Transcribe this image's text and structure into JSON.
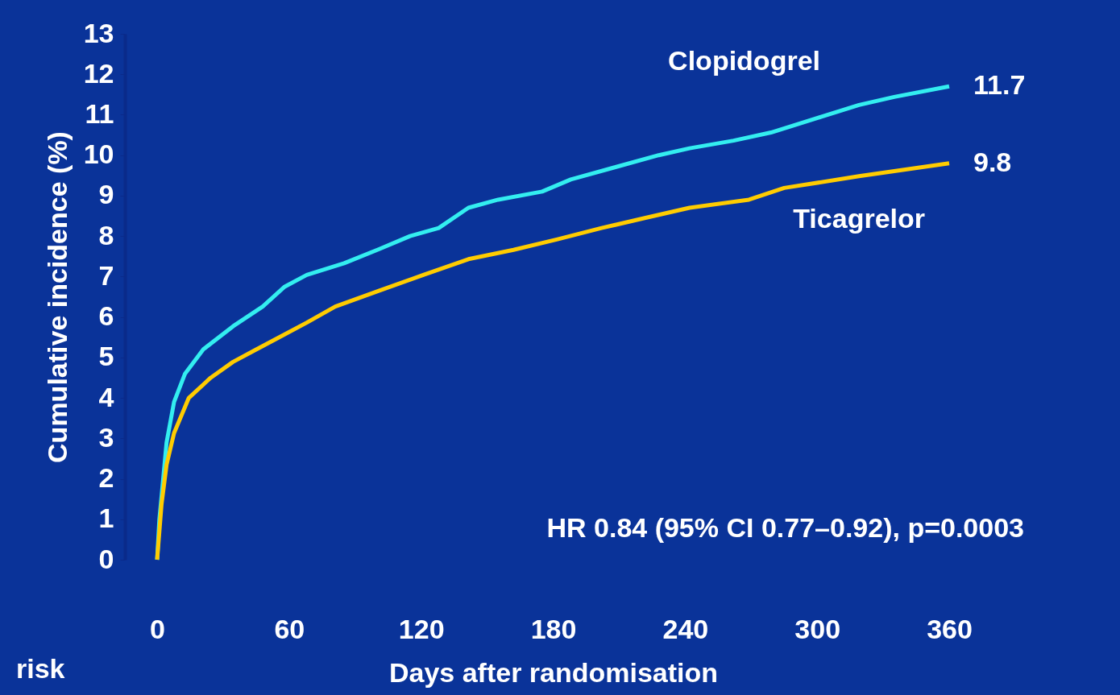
{
  "chart_data": {
    "type": "line",
    "xlabel": "Days after randomisation",
    "ylabel": "Cumulative incidence (%)",
    "xlim": [
      0,
      360
    ],
    "xticks": [
      0,
      60,
      120,
      180,
      240,
      300,
      360
    ],
    "ylim": [
      0,
      13
    ],
    "yticks": [
      0,
      1,
      2,
      3,
      4,
      5,
      6,
      7,
      8,
      9,
      10,
      11,
      12,
      13
    ],
    "grid": false,
    "legend": false,
    "marker": "none",
    "line_style": "solid",
    "series": [
      {
        "name": "Clopidogrel",
        "color": "#33eef0",
        "x": [
          0,
          1,
          2.7,
          4.3,
          7.7,
          12.7,
          21,
          34.5,
          48,
          58,
          68,
          85,
          101,
          115,
          128,
          141.5,
          155,
          175,
          188,
          208,
          228,
          242,
          262,
          279,
          302,
          319,
          335,
          360
        ],
        "values": [
          0,
          0.98,
          1.96,
          2.9,
          3.9,
          4.6,
          5.2,
          5.77,
          6.26,
          6.75,
          7.04,
          7.33,
          7.68,
          8.0,
          8.2,
          8.7,
          8.9,
          9.1,
          9.4,
          9.7,
          10.0,
          10.17,
          10.36,
          10.56,
          10.95,
          11.24,
          11.44,
          11.7
        ],
        "value_labels": [
          null,
          null,
          null,
          null,
          null,
          null,
          null,
          null,
          null,
          null,
          null,
          null,
          null,
          null,
          null,
          null,
          null,
          null,
          null,
          null,
          null,
          null,
          null,
          null,
          null,
          null,
          null,
          "11.7"
        ]
      },
      {
        "name": "Ticagrelor",
        "color": "#ffcc00",
        "x": [
          0,
          2,
          4.3,
          7.7,
          14.4,
          24.4,
          34.5,
          44.5,
          54.5,
          68,
          81,
          101,
          121,
          141.5,
          162,
          182,
          202,
          222,
          242,
          269,
          285,
          319,
          360
        ],
        "values": [
          0,
          1.37,
          2.35,
          3.13,
          4.0,
          4.5,
          4.89,
          5.18,
          5.47,
          5.86,
          6.26,
          6.65,
          7.04,
          7.43,
          7.66,
          7.92,
          8.2,
          8.45,
          8.7,
          8.9,
          9.19,
          9.48,
          9.8
        ],
        "value_labels": [
          null,
          null,
          null,
          null,
          null,
          null,
          null,
          null,
          null,
          null,
          null,
          null,
          null,
          null,
          null,
          null,
          null,
          null,
          null,
          null,
          null,
          null,
          "9.8"
        ]
      }
    ],
    "annotations": [
      "HR 0.84 (95% CI 0.77–0.92), p=0.0003",
      "risk"
    ]
  }
}
